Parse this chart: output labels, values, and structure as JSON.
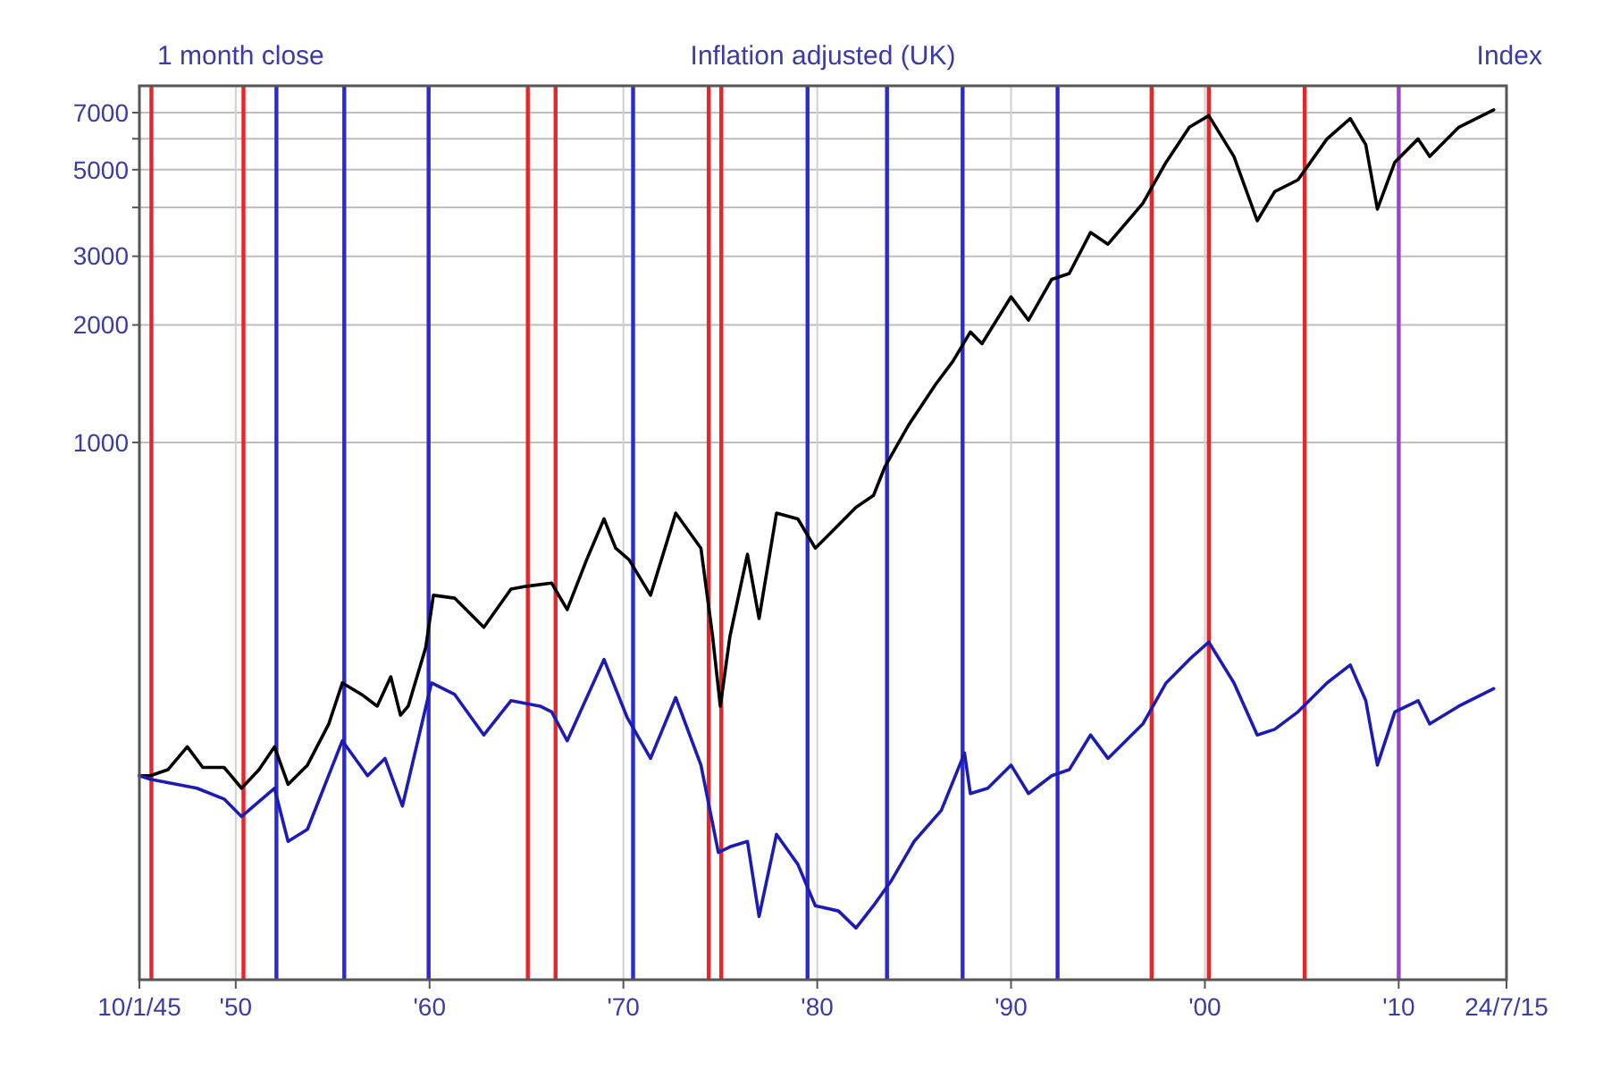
{
  "chart_data": {
    "type": "line",
    "title": "Inflation adjusted (UK)",
    "ylabel": "Index",
    "annotations": [
      "1 month close"
    ],
    "log": "y",
    "grid": true,
    "marker": "none",
    "line_style": "solid",
    "xlim": [
      1945.03,
      2015.56
    ],
    "xticks": [
      {
        "value": 1945.03,
        "label": "10/1/45"
      },
      {
        "value": 1950,
        "label": "'50"
      },
      {
        "value": 1960,
        "label": "'60"
      },
      {
        "value": 1970,
        "label": "'70"
      },
      {
        "value": 1980,
        "label": "'80"
      },
      {
        "value": 1990,
        "label": "'90"
      },
      {
        "value": 2000,
        "label": "'00"
      },
      {
        "value": 2010,
        "label": "'10"
      },
      {
        "value": 2015.56,
        "label": "24/7/15"
      }
    ],
    "ylim": [
      42,
      8200
    ],
    "yticks": [
      1000,
      2000,
      3000,
      {
        "value": 4000,
        "label": null
      },
      5000,
      {
        "value": 6000,
        "label": null
      },
      7000
    ],
    "series": [
      {
        "color": "#000000",
        "x": [
          1945.03,
          1945.6,
          1946.5,
          1947.5,
          1948.3,
          1949.4,
          1950.3,
          1951.2,
          1952.0,
          1952.7,
          1953.7,
          1954.8,
          1955.5,
          1956.5,
          1957.3,
          1958.0,
          1958.5,
          1958.9,
          1959.8,
          1960.2,
          1961.3,
          1962.8,
          1964.2,
          1965.0,
          1966.3,
          1967.1,
          1968.1,
          1969.0,
          1969.6,
          1970.3,
          1971.4,
          1972.7,
          1974.0,
          1974.6,
          1975.0,
          1975.5,
          1976.4,
          1977.0,
          1977.9,
          1979.0,
          1979.9,
          1980.8,
          1982.0,
          1982.9,
          1983.5,
          1984.7,
          1986.1,
          1987.0,
          1987.9,
          1988.5,
          1990.0,
          1990.9,
          1992.1,
          1993.0,
          1994.1,
          1995.0,
          1996.8,
          1998.0,
          1999.2,
          2000.2,
          2001.5,
          2002.7,
          2003.6,
          2004.8,
          2006.3,
          2007.5,
          2008.3,
          2008.9,
          2009.8,
          2011.0,
          2011.6,
          2013.1,
          2014.9
        ],
        "values": [
          140,
          140,
          145,
          166,
          147,
          147,
          130,
          145,
          166,
          133,
          149,
          190,
          242,
          226,
          211,
          251,
          200,
          211,
          298,
          406,
          399,
          336,
          421,
          428,
          436,
          373,
          500,
          637,
          536,
          500,
          406,
          659,
          536,
          319,
          211,
          319,
          517,
          354,
          659,
          637,
          536,
          594,
          682,
          731,
          868,
          1105,
          1407,
          1615,
          1919,
          1791,
          2361,
          2057,
          2618,
          2709,
          3451,
          3221,
          4100,
          5224,
          6424,
          6875,
          5403,
          3698,
          4393,
          4707,
          5995,
          6761,
          5791,
          3963,
          5224,
          5995,
          5403,
          6424,
          7118
        ]
      },
      {
        "color": "#1c1cb4",
        "x": [
          1945.03,
          1945.6,
          1948.0,
          1949.4,
          1950.3,
          1952.0,
          1952.7,
          1953.7,
          1955.5,
          1956.8,
          1957.7,
          1958.6,
          1960.1,
          1961.3,
          1962.8,
          1964.2,
          1965.7,
          1966.3,
          1967.1,
          1969.0,
          1970.2,
          1971.4,
          1972.7,
          1974.0,
          1974.9,
          1975.5,
          1976.4,
          1977.0,
          1977.9,
          1979.0,
          1979.9,
          1981.1,
          1982.0,
          1982.9,
          1983.8,
          1985.0,
          1986.4,
          1987.6,
          1987.9,
          1988.8,
          1990.0,
          1990.9,
          1992.1,
          1993.0,
          1994.1,
          1995.0,
          1996.8,
          1998.0,
          1999.2,
          2000.2,
          2001.5,
          2002.7,
          2003.6,
          2004.8,
          2006.3,
          2007.5,
          2008.3,
          2008.9,
          2009.8,
          2011.0,
          2011.6,
          2013.1,
          2014.9
        ],
        "values": [
          140,
          137,
          130,
          122,
          110,
          130,
          95,
          102,
          172,
          140,
          155,
          117,
          242,
          226,
          178,
          218,
          211,
          204,
          172,
          278,
          197,
          155,
          222,
          149,
          89,
          92,
          95,
          61,
          99,
          83,
          65,
          63,
          57,
          65,
          75,
          95,
          114,
          160,
          126,
          130,
          149,
          126,
          140,
          145,
          178,
          155,
          190,
          242,
          278,
          308,
          242,
          178,
          184,
          204,
          242,
          269,
          218,
          149,
          204,
          218,
          190,
          211,
          234
        ]
      }
    ],
    "ref_lines": [
      {
        "axis": "x",
        "value": 1945.65,
        "color": "#e8262a"
      },
      {
        "axis": "x",
        "value": 1950.4,
        "color": "#e8262a"
      },
      {
        "axis": "x",
        "value": 1952.1,
        "color": "#2a2ad0"
      },
      {
        "axis": "x",
        "value": 1955.6,
        "color": "#2a2ad0"
      },
      {
        "axis": "x",
        "value": 1959.95,
        "color": "#2a2ad0"
      },
      {
        "axis": "x",
        "value": 1965.07,
        "color": "#e8262a"
      },
      {
        "axis": "x",
        "value": 1966.5,
        "color": "#e8262a"
      },
      {
        "axis": "x",
        "value": 1970.5,
        "color": "#2a2ad0"
      },
      {
        "axis": "x",
        "value": 1974.4,
        "color": "#e8262a"
      },
      {
        "axis": "x",
        "value": 1975.05,
        "color": "#e8262a"
      },
      {
        "axis": "x",
        "value": 1979.5,
        "color": "#2a2ad0"
      },
      {
        "axis": "x",
        "value": 1983.6,
        "color": "#2a2ad0"
      },
      {
        "axis": "x",
        "value": 1987.5,
        "color": "#2a2ad0"
      },
      {
        "axis": "x",
        "value": 1992.4,
        "color": "#2a2ad0"
      },
      {
        "axis": "x",
        "value": 1997.25,
        "color": "#e8262a"
      },
      {
        "axis": "x",
        "value": 2000.2,
        "color": "#e8262a"
      },
      {
        "axis": "x",
        "value": 2005.15,
        "color": "#e8262a"
      },
      {
        "axis": "x",
        "value": 2010.0,
        "color": "#a040d0"
      }
    ]
  }
}
